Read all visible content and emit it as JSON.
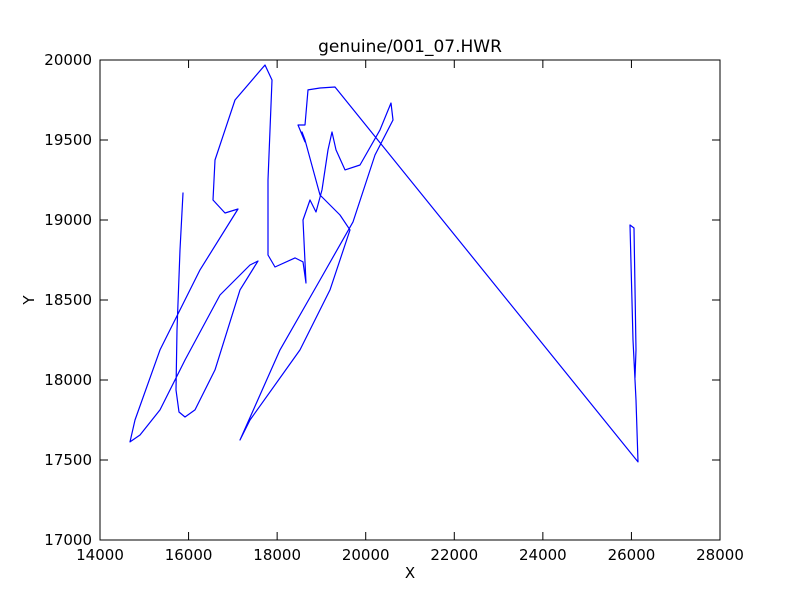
{
  "chart_data": {
    "type": "line",
    "title": "genuine/001_07.HWR",
    "xlabel": "X",
    "ylabel": "Y",
    "xlim": [
      14000,
      28000
    ],
    "xticks": [
      14000,
      16000,
      18000,
      20000,
      22000,
      24000,
      26000,
      28000
    ],
    "ylim": [
      17000,
      20000
    ],
    "yticks": [
      17000,
      17500,
      18000,
      18500,
      19000,
      19500,
      20000
    ],
    "x": [
      15852,
      15874,
      15806,
      15739,
      15716,
      15784,
      15919,
      16145,
      16597,
      17161,
      17568,
      17387,
      16710,
      15919,
      15355,
      14903,
      14677,
      14790,
      15355,
      16258,
      17116,
      16823,
      16552,
      16597,
      17048,
      17726,
      17884,
      17794,
      17794,
      17952,
      18403,
      18584,
      18652,
      18584,
      18742,
      18877,
      19013,
      19148,
      19239,
      19329,
      19532,
      19871,
      20323,
      20571,
      20616,
      20210,
      19713,
      18968,
      18064,
      17161,
      17387,
      18516,
      19194,
      19645,
      19419,
      18968,
      18629,
      18561,
      18629,
      18471,
      18629,
      18697,
      18968,
      19306,
      26148,
      26103,
      26035,
      25968,
      26058,
      26103,
      26081
    ],
    "series": [
      {
        "color": "#0000ff",
        "values": [
          19050,
          19169,
          18813,
          18313,
          17938,
          17800,
          17769,
          17813,
          18063,
          18563,
          18744,
          18719,
          18531,
          18125,
          17813,
          17656,
          17613,
          17750,
          18188,
          18688,
          19069,
          19044,
          19125,
          19375,
          19750,
          19969,
          19875,
          19250,
          18781,
          18706,
          18763,
          18738,
          18606,
          19000,
          19125,
          19050,
          19188,
          19438,
          19550,
          19438,
          19313,
          19344,
          19563,
          19731,
          19625,
          19406,
          18988,
          18625,
          18188,
          17625,
          17750,
          18188,
          18563,
          18938,
          19031,
          19156,
          19500,
          19550,
          19488,
          19594,
          19594,
          19813,
          19825,
          19831,
          17488,
          17875,
          18250,
          18969,
          18950,
          18188,
          18013
        ]
      }
    ]
  }
}
